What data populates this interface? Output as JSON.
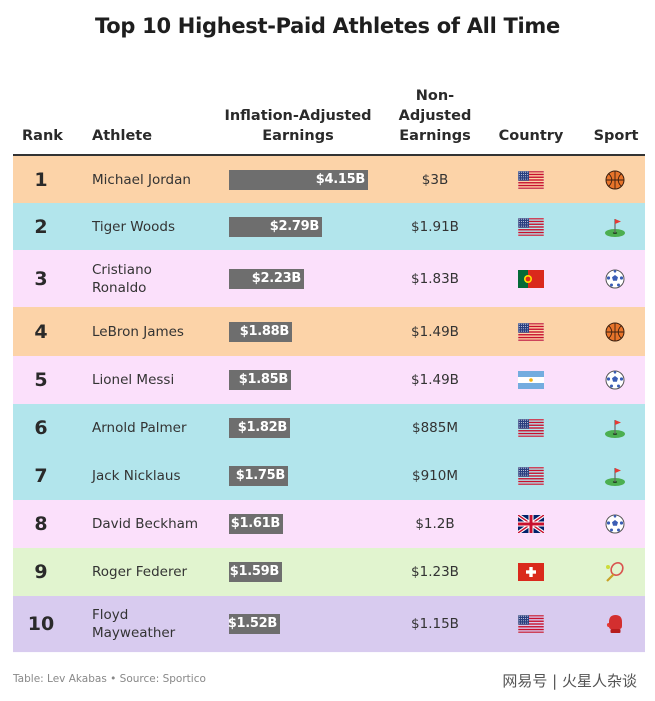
{
  "title": "Top 10 Highest-Paid Athletes of All Time",
  "headers": {
    "rank": "Rank",
    "athlete": "Athlete",
    "inflation_adjusted": "Inflation-Adjusted Earnings",
    "non_adjusted": "Non-Adjusted Earnings",
    "country": "Country",
    "sport": "Sport"
  },
  "footer": "Table: Lev Akabas • Source: Sportico",
  "watermark": "网易号 | 火星人杂谈",
  "colors": {
    "basketball": "#fcd3a8",
    "golf": "#b2e5ec",
    "soccer": "#fbe0fb",
    "tennis": "#e1f4cf",
    "boxing": "#d8cbef",
    "bar": "#6e6e6e"
  },
  "chart_data": {
    "type": "table",
    "title": "Top 10 Highest-Paid Athletes of All Time",
    "columns": [
      "Rank",
      "Athlete",
      "Inflation-Adjusted Earnings",
      "Non-Adjusted Earnings",
      "Country",
      "Sport"
    ],
    "rows": [
      {
        "rank": "1",
        "athlete": "Michael Jordan",
        "adjusted": 4.15,
        "adjusted_label": "$4.15B",
        "non_adjusted": "$3B",
        "country": "United States",
        "flag_icon": "us-flag-icon",
        "sport": "basketball",
        "sport_icon": "basketball-icon"
      },
      {
        "rank": "2",
        "athlete": "Tiger Woods",
        "adjusted": 2.79,
        "adjusted_label": "$2.79B",
        "non_adjusted": "$1.91B",
        "country": "United States",
        "flag_icon": "us-flag-icon",
        "sport": "golf",
        "sport_icon": "golf-icon"
      },
      {
        "rank": "3",
        "athlete": "Cristiano Ronaldo",
        "adjusted": 2.23,
        "adjusted_label": "$2.23B",
        "non_adjusted": "$1.83B",
        "country": "Portugal",
        "flag_icon": "portugal-flag-icon",
        "sport": "soccer",
        "sport_icon": "soccer-ball-icon"
      },
      {
        "rank": "4",
        "athlete": "LeBron James",
        "adjusted": 1.88,
        "adjusted_label": "$1.88B",
        "non_adjusted": "$1.49B",
        "country": "United States",
        "flag_icon": "us-flag-icon",
        "sport": "basketball",
        "sport_icon": "basketball-icon"
      },
      {
        "rank": "5",
        "athlete": "Lionel Messi",
        "adjusted": 1.85,
        "adjusted_label": "$1.85B",
        "non_adjusted": "$1.49B",
        "country": "Argentina",
        "flag_icon": "argentina-flag-icon",
        "sport": "soccer",
        "sport_icon": "soccer-ball-icon"
      },
      {
        "rank": "6",
        "athlete": "Arnold Palmer",
        "adjusted": 1.82,
        "adjusted_label": "$1.82B",
        "non_adjusted": "$885M",
        "country": "United States",
        "flag_icon": "us-flag-icon",
        "sport": "golf",
        "sport_icon": "golf-icon"
      },
      {
        "rank": "7",
        "athlete": "Jack Nicklaus",
        "adjusted": 1.75,
        "adjusted_label": "$1.75B",
        "non_adjusted": "$910M",
        "country": "United States",
        "flag_icon": "us-flag-icon",
        "sport": "golf",
        "sport_icon": "golf-icon"
      },
      {
        "rank": "8",
        "athlete": "David Beckham",
        "adjusted": 1.61,
        "adjusted_label": "$1.61B",
        "non_adjusted": "$1.2B",
        "country": "United Kingdom",
        "flag_icon": "uk-flag-icon",
        "sport": "soccer",
        "sport_icon": "soccer-ball-icon"
      },
      {
        "rank": "9",
        "athlete": "Roger Federer",
        "adjusted": 1.59,
        "adjusted_label": "$1.59B",
        "non_adjusted": "$1.23B",
        "country": "Switzerland",
        "flag_icon": "switzerland-flag-icon",
        "sport": "tennis",
        "sport_icon": "tennis-racket-icon"
      },
      {
        "rank": "10",
        "athlete": "Floyd Mayweather",
        "adjusted": 1.52,
        "adjusted_label": "$1.52B",
        "non_adjusted": "$1.15B",
        "country": "United States",
        "flag_icon": "us-flag-icon",
        "sport": "boxing",
        "sport_icon": "boxing-glove-icon"
      }
    ],
    "adjusted_max": 4.15
  }
}
